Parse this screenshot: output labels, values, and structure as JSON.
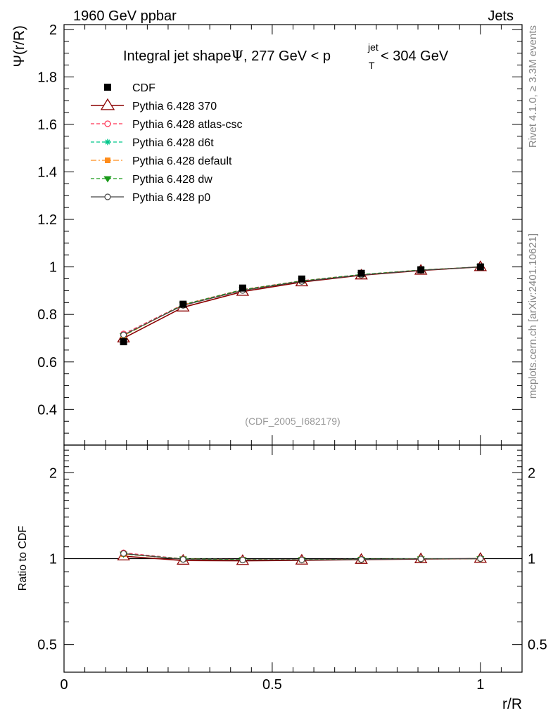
{
  "header": {
    "left": "1960 GeV ppbar",
    "right": "Jets"
  },
  "side_labels": {
    "rivet": "Rivet 4.1.0, ≥ 3.3M events",
    "mcplots": "mcplots.cern.ch [arXiv:2401.10621]"
  },
  "colors": {
    "CDF": "#000000",
    "p370": "#8b0000",
    "atlas": "#ff3355",
    "d6t": "#00c68a",
    "default": "#ff8c1a",
    "dw": "#1a9a1a",
    "p0": "#444444"
  },
  "chart_data": [
    {
      "type": "line",
      "panel": "main",
      "title_parts": {
        "prefix": "Integral jet shape",
        "psi": "Ψ",
        "middle": ", 277 GeV < p",
        "sup": "jet",
        "sub": "T",
        "suffix": " < 304 GeV"
      },
      "ylabel": "Ψ(r/R)",
      "watermark": "(CDF_2005_I682179)",
      "xlim": [
        0,
        1.1
      ],
      "ylim": [
        0.25,
        2.02
      ],
      "yticks": [
        0.4,
        0.6,
        0.8,
        1.0,
        1.2,
        1.4,
        1.6,
        1.8,
        2.0
      ],
      "ytick_labels": [
        "0.4",
        "0.6",
        "0.8",
        "1",
        "1.2",
        "1.4",
        "1.6",
        "1.8",
        "2"
      ],
      "x": [
        0.143,
        0.286,
        0.429,
        0.571,
        0.714,
        0.857,
        1.0
      ],
      "series": [
        {
          "key": "CDF",
          "name": "CDF",
          "marker": "square-filled",
          "line": "none",
          "values": [
            0.685,
            0.843,
            0.911,
            0.949,
            0.973,
            0.988,
            1.0
          ]
        },
        {
          "key": "p370",
          "name": "Pythia 6.428 370",
          "marker": "triangle-open",
          "line": "solid",
          "values": [
            0.7,
            0.83,
            0.896,
            0.936,
            0.965,
            0.985,
            1.0
          ]
        },
        {
          "key": "atlas",
          "name": "Pythia 6.428 atlas-csc",
          "marker": "circle-open",
          "line": "dashed",
          "values": [
            0.718,
            0.842,
            0.905,
            0.942,
            0.968,
            0.987,
            1.0
          ]
        },
        {
          "key": "d6t",
          "name": "Pythia 6.428 d6t",
          "marker": "asterisk",
          "line": "dashed",
          "values": [
            0.712,
            0.841,
            0.904,
            0.941,
            0.968,
            0.987,
            1.0
          ]
        },
        {
          "key": "default",
          "name": "Pythia 6.428 default",
          "marker": "square-filled",
          "line": "dashdot",
          "values": [
            0.71,
            0.84,
            0.903,
            0.94,
            0.967,
            0.987,
            1.0
          ]
        },
        {
          "key": "dw",
          "name": "Pythia 6.428 dw",
          "marker": "triangle-down-filled",
          "line": "dashed",
          "values": [
            0.711,
            0.841,
            0.904,
            0.941,
            0.968,
            0.987,
            1.0
          ]
        },
        {
          "key": "p0",
          "name": "Pythia 6.428 p0",
          "marker": "circle-open",
          "line": "solid",
          "values": [
            0.714,
            0.838,
            0.901,
            0.939,
            0.966,
            0.986,
            1.0
          ]
        }
      ]
    },
    {
      "type": "line",
      "panel": "ratio",
      "ylabel": "Ratio to CDF",
      "xlabel": "r/R",
      "yscale": "log",
      "ylim": [
        0.4,
        2.5
      ],
      "yticks": [
        0.5,
        1,
        2
      ],
      "ytick_labels": [
        "0.5",
        "1",
        "2"
      ],
      "xticks": [
        0,
        0.5,
        1
      ],
      "xtick_labels": [
        "0",
        "0.5",
        "1"
      ],
      "x": [
        0.143,
        0.286,
        0.429,
        0.571,
        0.714,
        0.857,
        1.0
      ],
      "series": [
        {
          "key": "p370",
          "name": "Pythia 6.428 370",
          "values": [
            1.02,
            0.985,
            0.983,
            0.986,
            0.992,
            0.997,
            1.0
          ]
        },
        {
          "key": "atlas",
          "name": "Pythia 6.428 atlas-csc",
          "values": [
            1.048,
            0.999,
            0.993,
            0.993,
            0.995,
            0.999,
            1.0
          ]
        },
        {
          "key": "d6t",
          "name": "Pythia 6.428 d6t",
          "values": [
            1.04,
            0.998,
            0.992,
            0.992,
            0.995,
            0.999,
            1.0
          ]
        },
        {
          "key": "default",
          "name": "Pythia 6.428 default",
          "values": [
            1.037,
            0.996,
            0.991,
            0.991,
            0.994,
            0.999,
            1.0
          ]
        },
        {
          "key": "dw",
          "name": "Pythia 6.428 dw",
          "values": [
            1.038,
            0.998,
            0.992,
            0.992,
            0.995,
            0.999,
            1.0
          ]
        },
        {
          "key": "p0",
          "name": "Pythia 6.428 p0",
          "values": [
            1.042,
            0.994,
            0.989,
            0.99,
            0.993,
            0.998,
            1.0
          ]
        }
      ]
    }
  ]
}
